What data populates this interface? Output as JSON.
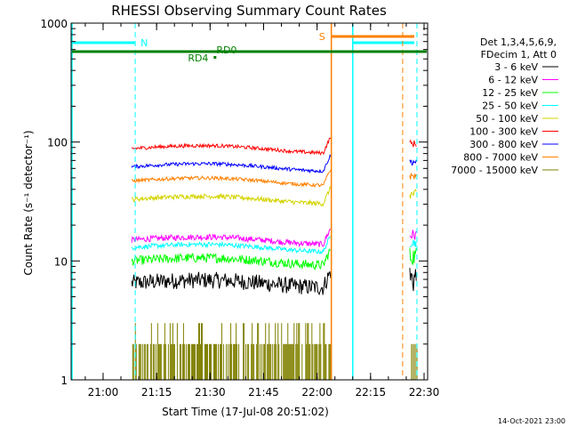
{
  "chart_data": {
    "type": "line",
    "title": "RHESSI Observing Summary Count Rates",
    "xlabel": "Start Time (17-Jul-08 20:51:02)",
    "ylabel": "Count Rate (s⁻¹ detector⁻¹)",
    "y_scale": "log",
    "ylim": [
      1,
      1000
    ],
    "xlim": [
      "20:51:02",
      "22:31:00"
    ],
    "x_ticks": [
      "21:00",
      "21:15",
      "21:30",
      "21:45",
      "22:00",
      "22:15",
      "22:30"
    ],
    "y_ticks": [
      "1",
      "10",
      "100",
      "1000"
    ],
    "legend_title": [
      "Det 1,3,4,5,6,9,",
      "FDecim 1, Att 0"
    ],
    "legend_position": "right",
    "series": [
      {
        "name": "3 - 6 keV",
        "color": "#000000",
        "level": 6.5
      },
      {
        "name": "6 - 12 keV",
        "color": "#ff00ff",
        "level": 15
      },
      {
        "name": "12 - 25 keV",
        "color": "#00ff00",
        "level": 10
      },
      {
        "name": "25 - 50 keV",
        "color": "#00ffff",
        "level": 13
      },
      {
        "name": "50 - 100 keV",
        "color": "#d4d400",
        "level": 33
      },
      {
        "name": "100 - 300 keV",
        "color": "#ff0000",
        "level": 88
      },
      {
        "name": "300 - 800 keV",
        "color": "#0000ff",
        "level": 62
      },
      {
        "name": "800 - 7000 keV",
        "color": "#ff8000",
        "level": 47
      },
      {
        "name": "7000 - 15000 keV",
        "color": "#808000",
        "level": 1.8
      }
    ],
    "data_intervals": [
      [
        "21:08",
        "22:04"
      ],
      [
        "22:26",
        "22:28"
      ]
    ],
    "annotations": [
      {
        "label": "N",
        "color": "#00ffff",
        "time": "21:09"
      },
      {
        "label": "S",
        "color": "#ff8000",
        "time": "22:04"
      },
      {
        "label": "RD0",
        "color": "#008000",
        "time": "21:31"
      },
      {
        "label": "RD4",
        "color": "#008000",
        "time": "21:31"
      }
    ],
    "footer_date": "14-Oct-2021 23:00"
  }
}
